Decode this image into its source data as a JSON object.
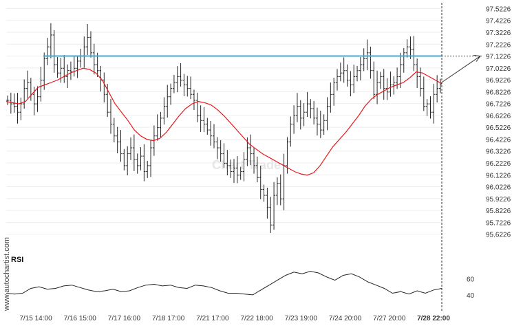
{
  "watermark": {
    "side_text": "www.autochartist.com",
    "logo_text": "Chart Trade"
  },
  "colors": {
    "candle": "#222222",
    "ma": "#e8161b",
    "level": "#3fa9d6",
    "rsi": "#222222",
    "grid": "#eeeeee",
    "axis_text": "#333333",
    "arrow": "#333333"
  },
  "chart_data": [
    {
      "type": "line",
      "title": "",
      "series": [
        {
          "kind": "ohlc-close-path",
          "values": [
            96.75,
            96.72,
            96.7,
            96.65,
            96.72,
            96.85,
            96.9,
            96.8,
            96.72,
            96.78,
            96.92,
            97.1,
            97.2,
            97.3,
            97.05,
            96.98,
            97.02,
            96.95,
            97.0,
            96.99,
            97.02,
            97.08,
            97.12,
            97.2,
            97.28,
            97.15,
            97.05,
            97.0,
            96.92,
            96.8,
            96.65,
            96.55,
            96.45,
            96.4,
            96.3,
            96.2,
            96.3,
            96.35,
            96.25,
            96.2,
            96.28,
            96.15,
            96.2,
            96.35,
            96.45,
            96.52,
            96.6,
            96.7,
            96.78,
            96.85,
            96.9,
            96.95,
            96.92,
            96.88,
            96.85,
            96.8,
            96.75,
            96.62,
            96.58,
            96.55,
            96.5,
            96.45,
            96.4,
            96.35,
            96.3,
            96.22,
            96.2,
            96.15,
            96.18,
            96.12,
            96.15,
            96.25,
            96.35,
            96.3,
            96.2,
            96.1,
            96.0,
            95.95,
            95.85,
            95.7,
            95.95,
            96.05,
            95.92,
            96.2,
            96.4,
            96.55,
            96.62,
            96.7,
            96.6,
            96.65,
            96.72,
            96.68,
            96.6,
            96.55,
            96.5,
            96.58,
            96.7,
            96.8,
            96.9,
            96.95,
            96.98,
            97.0,
            96.92,
            96.88,
            96.95,
            97.0,
            97.05,
            97.1,
            97.15,
            97.0,
            96.8,
            96.9,
            96.95,
            96.85,
            96.82,
            96.88,
            96.9,
            96.95,
            97.05,
            97.15,
            97.2,
            97.18,
            97.05,
            96.95,
            96.85,
            96.7,
            96.72,
            96.65,
            96.8,
            96.85,
            96.88
          ]
        },
        {
          "kind": "moving-average",
          "values": [
            96.74,
            96.73,
            96.72,
            96.74,
            96.8,
            96.86,
            96.88,
            96.9,
            96.92,
            96.95,
            96.98,
            97.0,
            97.02,
            97.01,
            96.98,
            96.92,
            96.82,
            96.72,
            96.65,
            96.58,
            96.5,
            96.45,
            96.42,
            96.41,
            96.43,
            96.48,
            96.55,
            96.62,
            96.68,
            96.72,
            96.74,
            96.73,
            96.71,
            96.67,
            96.62,
            96.56,
            96.5,
            96.44,
            96.38,
            96.34,
            96.3,
            96.27,
            96.24,
            96.21,
            96.18,
            96.15,
            96.13,
            96.12,
            96.14,
            96.2,
            96.28,
            96.36,
            96.42,
            96.48,
            96.55,
            96.62,
            96.7,
            96.76,
            96.8,
            96.83,
            96.86,
            96.88,
            96.9,
            96.94,
            96.99,
            96.98,
            96.95,
            96.92,
            96.89
          ]
        }
      ],
      "y_ticks": [
        "97.5226",
        "97.4226",
        "97.3226",
        "97.2226",
        "97.1226",
        "97.0226",
        "96.9226",
        "96.8226",
        "96.7226",
        "96.6226",
        "96.5226",
        "96.4226",
        "96.3226",
        "96.2226",
        "96.1226",
        "96.0226",
        "95.9226",
        "95.8226",
        "95.7226",
        "95.6226"
      ],
      "ylim": [
        95.58,
        97.56
      ],
      "x_ticks": [
        "7/15 14:00",
        "7/16 15:00",
        "7/17 16:00",
        "7/18 17:00",
        "7/21 17:00",
        "7/22 18:00",
        "7/23 19:00",
        "7/24 20:00",
        "7/27 20:00",
        "7/28 22:00"
      ],
      "resistance_level": 97.1226,
      "grid": true
    },
    {
      "type": "line",
      "title": "",
      "ylabel": "RSI",
      "y_ticks": [
        "60",
        "40"
      ],
      "ylim": [
        34,
        78
      ],
      "series": [
        {
          "values": [
            42,
            41,
            42,
            48,
            50,
            47,
            48,
            51,
            52,
            49,
            46,
            44,
            45,
            47,
            44,
            45,
            49,
            52,
            53,
            51,
            52,
            49,
            48,
            52,
            51,
            49,
            45,
            42,
            42,
            41,
            40,
            46,
            52,
            58,
            64,
            68,
            66,
            69,
            67,
            62,
            58,
            64,
            66,
            62,
            56,
            52,
            48,
            42,
            44,
            41,
            45,
            42,
            46,
            48
          ]
        }
      ]
    }
  ]
}
